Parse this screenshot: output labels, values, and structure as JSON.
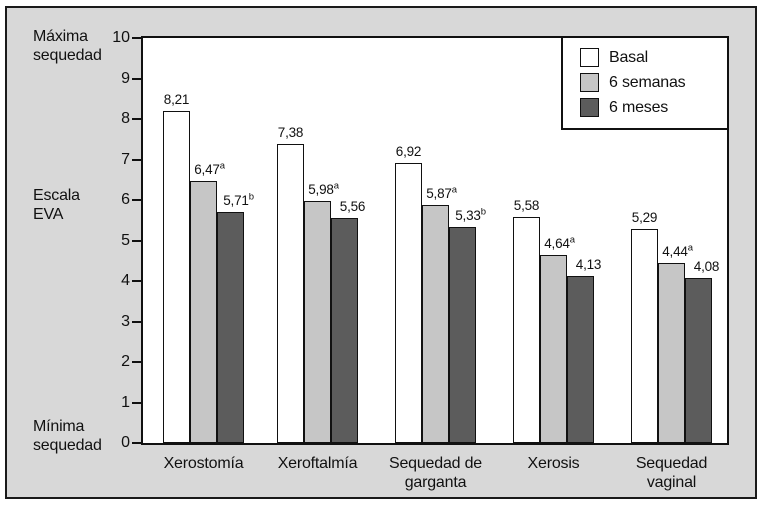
{
  "figure": {
    "background": "#d8d8d8",
    "border_color": "#1a1a1a"
  },
  "chart_data": {
    "type": "bar",
    "title": "",
    "y_axis": {
      "label": "Escala\nEVA",
      "top_label": "Máxima\nsequedad",
      "bottom_label": "Mínima\nsequedad",
      "min": 0,
      "max": 10,
      "ticks": [
        10,
        9,
        8,
        7,
        6,
        5,
        4,
        3,
        2,
        1,
        0
      ]
    },
    "categories": [
      "Xerostomía",
      "Xeroftalmía",
      "Sequedad de\ngarganta",
      "Xerosis",
      "Sequedad\nvaginal"
    ],
    "series": [
      {
        "name": "Basal",
        "color": "#ffffff",
        "values": [
          8.21,
          7.38,
          6.92,
          5.58,
          5.29
        ],
        "labels": [
          "8,21",
          "7,38",
          "6,92",
          "5,58",
          "5,29"
        ],
        "sups": [
          "",
          "",
          "",
          "",
          ""
        ]
      },
      {
        "name": "6 semanas",
        "color": "#c6c6c6",
        "values": [
          6.47,
          5.98,
          5.87,
          4.64,
          4.44
        ],
        "labels": [
          "6,47",
          "5,98",
          "5,87",
          "4,64",
          "4,44"
        ],
        "sups": [
          "a",
          "a",
          "a",
          "a",
          "a"
        ]
      },
      {
        "name": "6 meses",
        "color": "#5c5c5c",
        "values": [
          5.71,
          5.56,
          5.33,
          4.13,
          4.08
        ],
        "labels": [
          "5,71",
          "5,56",
          "5,33",
          "4,13",
          "4,08"
        ],
        "sups": [
          "b",
          "",
          "b",
          "",
          ""
        ]
      }
    ],
    "legend_position": "top-right",
    "grid": false,
    "bar_border_color": "#111111",
    "ylim": [
      0,
      10
    ]
  }
}
